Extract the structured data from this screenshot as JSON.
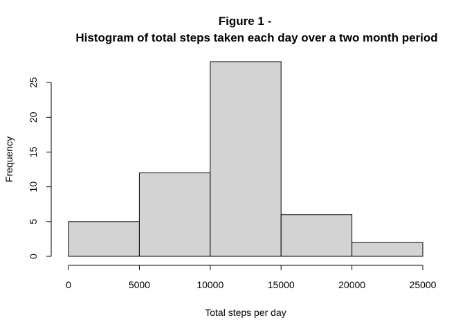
{
  "chart_data": {
    "type": "bar",
    "title": "Figure 1 -",
    "subtitle": "Histogram of total steps taken each day over a two month period",
    "xlabel": "Total steps per day",
    "ylabel": "Frequency",
    "bins": [
      {
        "from": 0,
        "to": 5000,
        "count": 5
      },
      {
        "from": 5000,
        "to": 10000,
        "count": 12
      },
      {
        "from": 10000,
        "to": 15000,
        "count": 28
      },
      {
        "from": 15000,
        "to": 20000,
        "count": 6
      },
      {
        "from": 20000,
        "to": 25000,
        "count": 2
      }
    ],
    "xticks": [
      0,
      5000,
      10000,
      15000,
      20000,
      25000
    ],
    "yticks": [
      0,
      5,
      10,
      15,
      20,
      25
    ],
    "xlim": [
      0,
      25000
    ],
    "ylim": [
      0,
      28
    ],
    "bar_fill": "#d3d3d3",
    "bar_stroke": "#000000",
    "grid": false,
    "legend": "none"
  }
}
